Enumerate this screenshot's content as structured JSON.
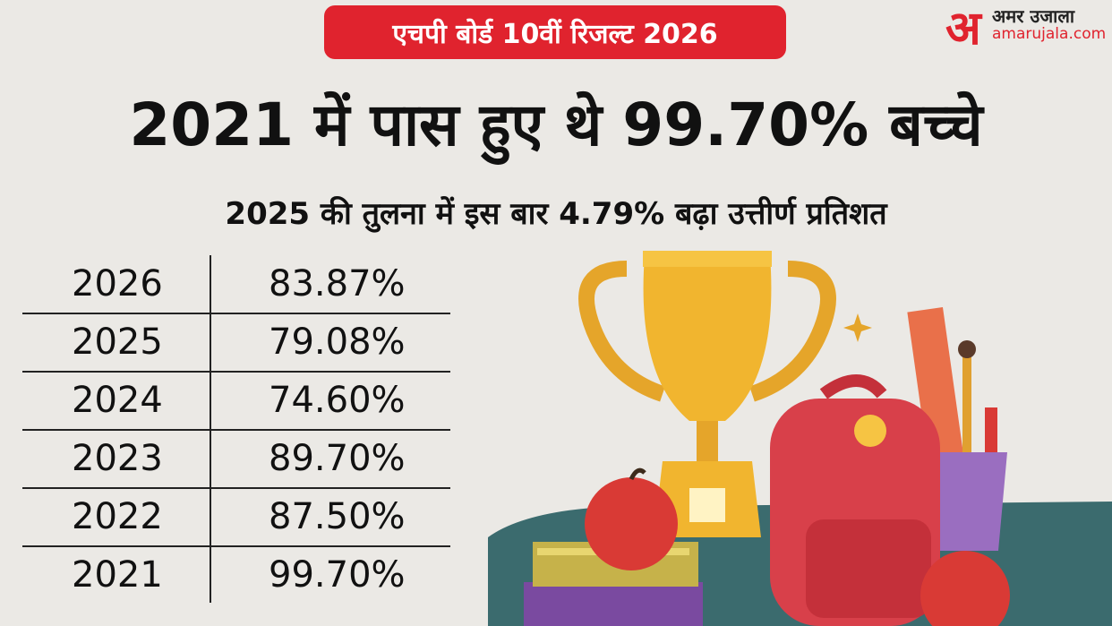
{
  "header": {
    "badge": "एचपी बोर्ड 10वीं रिजल्ट 2026",
    "title": "2021 में पास हुए थे 99.70% बच्चे",
    "subtitle": "2025 की तुलना में इस बार 4.79% बढ़ा उत्तीर्ण प्रतिशत"
  },
  "logo": {
    "mark": "अ",
    "name": "अमर उजाला",
    "site": "amarujala.com"
  },
  "table": {
    "rows": [
      [
        "2026",
        "83.87%"
      ],
      [
        "2025",
        "79.08%"
      ],
      [
        "2024",
        "74.60%"
      ],
      [
        "2023",
        "89.70%"
      ],
      [
        "2022",
        "87.50%"
      ],
      [
        "2021",
        "99.70%"
      ]
    ]
  }
}
